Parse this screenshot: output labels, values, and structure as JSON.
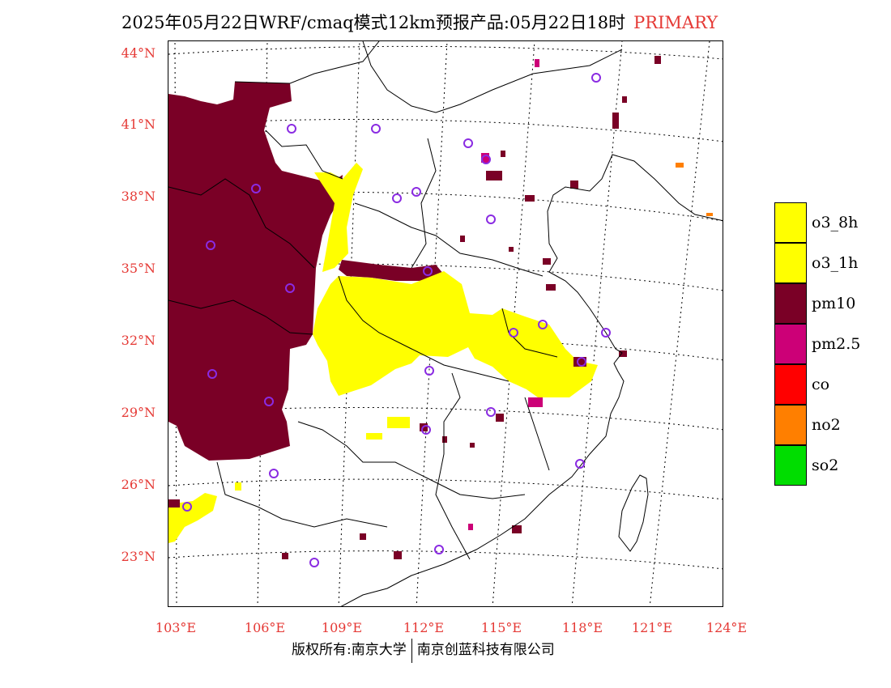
{
  "title": {
    "main": "2025年05月22日WRF/cmaq模式12km预报产品:05月22日18时",
    "tag": "PRIMARY",
    "tag_color": "#e53935"
  },
  "map": {
    "latitude_labels": [
      "44°N",
      "41°N",
      "38°N",
      "35°N",
      "32°N",
      "29°N",
      "26°N",
      "23°N"
    ],
    "longitude_labels": [
      "103°E",
      "106°E",
      "109°E",
      "112°E",
      "115°E",
      "118°E",
      "121°E",
      "124°E"
    ],
    "label_color": "#e53935",
    "station_marker_color": "#8a2be2"
  },
  "legend": {
    "items": [
      {
        "label": "o3_8h",
        "color": "#ffff00"
      },
      {
        "label": "o3_1h",
        "color": "#ffff00"
      },
      {
        "label": "pm10",
        "color": "#7a0026"
      },
      {
        "label": "pm2.5",
        "color": "#cc0077"
      },
      {
        "label": "co",
        "color": "#ff0000"
      },
      {
        "label": "no2",
        "color": "#ff7f00"
      },
      {
        "label": "so2",
        "color": "#00dd00"
      }
    ]
  },
  "footer": {
    "left": "版权所有:南京大学",
    "right": "南京创蓝科技有限公司"
  }
}
